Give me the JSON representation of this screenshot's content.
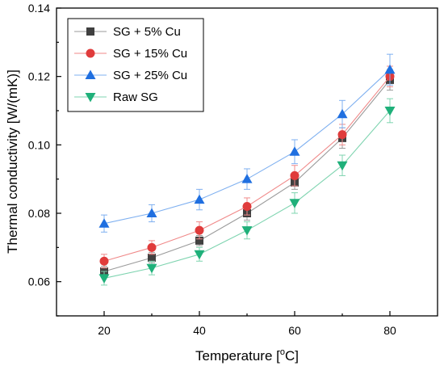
{
  "chart_data": {
    "type": "line",
    "xlabel": "Temperature [",
    "xlabel_sup": "o",
    "xlabel_suffix": "C]",
    "ylabel": "Thermal conductivity [W/(mK)]",
    "xlim": [
      10,
      90
    ],
    "ylim": [
      0.05,
      0.14
    ],
    "x_ticks": [
      20,
      30,
      40,
      50,
      60,
      70,
      80
    ],
    "x_tick_labels": [
      "20",
      "40",
      "60",
      "80"
    ],
    "y_ticks": [
      0.06,
      0.08,
      0.1,
      0.12,
      0.14
    ],
    "y_tick_labels": [
      "0.06",
      "0.08",
      "0.10",
      "0.12",
      "0.14"
    ],
    "legend_position": "top-left",
    "grid": false,
    "x": [
      20,
      30,
      40,
      50,
      60,
      70,
      80
    ],
    "series": [
      {
        "name": "SG + 5% Cu",
        "marker": "square",
        "color": "#404040",
        "line_color": "#9a9a9a",
        "values": [
          0.063,
          0.067,
          0.072,
          0.08,
          0.089,
          0.102,
          0.119
        ],
        "errors": [
          0.0015,
          0.0015,
          0.0015,
          0.002,
          0.002,
          0.003,
          0.003
        ]
      },
      {
        "name": "SG + 15% Cu",
        "marker": "circle",
        "color": "#e03b3b",
        "line_color": "#f08a8a",
        "values": [
          0.066,
          0.07,
          0.075,
          0.082,
          0.091,
          0.103,
          0.12
        ],
        "errors": [
          0.002,
          0.002,
          0.0025,
          0.0025,
          0.003,
          0.003,
          0.003
        ]
      },
      {
        "name": "SG + 25% Cu",
        "marker": "triangle-up",
        "color": "#1f6fe0",
        "line_color": "#7fb0f0",
        "values": [
          0.077,
          0.08,
          0.084,
          0.09,
          0.098,
          0.109,
          0.122
        ],
        "errors": [
          0.0025,
          0.0025,
          0.003,
          0.003,
          0.0035,
          0.004,
          0.0045
        ]
      },
      {
        "name": "Raw SG",
        "marker": "triangle-down",
        "color": "#1fb07a",
        "line_color": "#7fd4b0",
        "values": [
          0.061,
          0.064,
          0.068,
          0.075,
          0.083,
          0.094,
          0.11
        ],
        "errors": [
          0.002,
          0.002,
          0.002,
          0.0025,
          0.003,
          0.003,
          0.0035
        ]
      }
    ]
  }
}
